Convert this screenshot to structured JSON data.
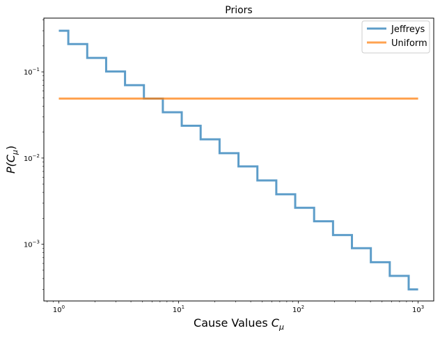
{
  "chart_data": {
    "type": "line",
    "drawstyle": "steps",
    "title": "Priors",
    "xlabel": {
      "base": "Cause Values ",
      "var": "C",
      "sub": "μ"
    },
    "ylabel": {
      "pre": "P(",
      "var": "C",
      "sub": "μ",
      "post": ")"
    },
    "xscale": "log",
    "yscale": "log",
    "xlim": [
      0.75,
      1350
    ],
    "ylim": [
      0.00022,
      0.42
    ],
    "grid": false,
    "legend_position": "top-right",
    "xticks": [
      {
        "value": 1,
        "base": "10",
        "exp": "0"
      },
      {
        "value": 10,
        "base": "10",
        "exp": "1"
      },
      {
        "value": 100,
        "base": "10",
        "exp": "2"
      },
      {
        "value": 1000,
        "base": "10",
        "exp": "3"
      }
    ],
    "yticks": [
      {
        "value": 0.001,
        "base": "10",
        "exp": "−3"
      },
      {
        "value": 0.01,
        "base": "10",
        "exp": "−2"
      },
      {
        "value": 0.1,
        "base": "10",
        "exp": "−1"
      }
    ],
    "series": [
      {
        "name": "Jeffreys",
        "color": "#1f77b4",
        "x": [
          1.0,
          1.44,
          2.07,
          2.98,
          4.28,
          6.16,
          8.86,
          12.74,
          18.33,
          26.37,
          37.93,
          54.56,
          78.48,
          112.88,
          162.38,
          233.57,
          335.98,
          483.29,
          695.19,
          1000.0
        ],
        "y": [
          0.3,
          0.21,
          0.145,
          0.101,
          0.07,
          0.049,
          0.034,
          0.0237,
          0.0165,
          0.0114,
          0.008,
          0.0055,
          0.0038,
          0.00265,
          0.00185,
          0.00128,
          0.0009,
          0.00062,
          0.00043,
          0.0003
        ]
      },
      {
        "name": "Uniform",
        "color": "#ff7f0e",
        "x": [
          1.0,
          1000.0
        ],
        "y": [
          0.049,
          0.049
        ]
      }
    ]
  }
}
